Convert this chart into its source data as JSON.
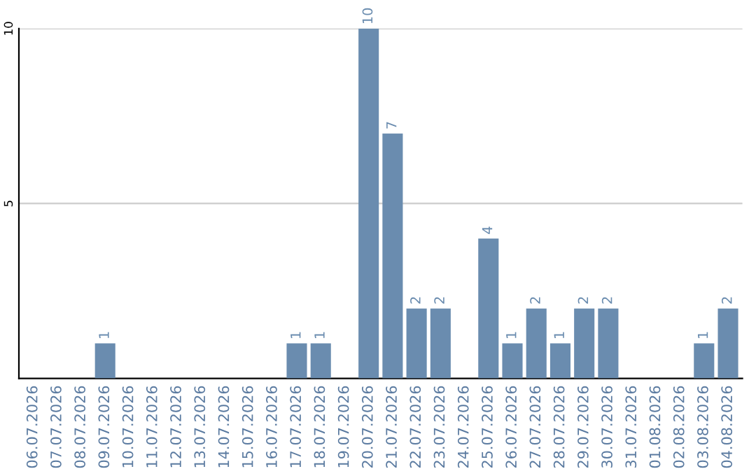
{
  "chart_data": {
    "type": "bar",
    "categories": [
      "06.07.2026",
      "07.07.2026",
      "08.07.2026",
      "09.07.2026",
      "10.07.2026",
      "11.07.2026",
      "12.07.2026",
      "13.07.2026",
      "14.07.2026",
      "15.07.2026",
      "16.07.2026",
      "17.07.2026",
      "18.07.2026",
      "19.07.2026",
      "20.07.2026",
      "21.07.2026",
      "22.07.2026",
      "23.07.2026",
      "24.07.2026",
      "25.07.2026",
      "26.07.2026",
      "27.07.2026",
      "28.07.2026",
      "29.07.2026",
      "30.07.2026",
      "31.07.2026",
      "01.08.2026",
      "02.08.2026",
      "03.08.2026",
      "04.08.2026"
    ],
    "values": [
      0,
      0,
      0,
      1,
      0,
      0,
      0,
      0,
      0,
      0,
      0,
      1,
      1,
      0,
      10,
      7,
      2,
      2,
      0,
      4,
      1,
      2,
      1,
      2,
      2,
      0,
      0,
      0,
      1,
      2
    ],
    "value_labels": [
      null,
      null,
      null,
      "1",
      null,
      null,
      null,
      null,
      null,
      null,
      null,
      "1",
      "1",
      null,
      "10",
      "7",
      "2",
      "2",
      null,
      "4",
      "1",
      "2",
      "1",
      "2",
      "2",
      null,
      null,
      null,
      "1",
      "2"
    ],
    "color": "#6a8caf",
    "ylim": [
      0,
      10
    ],
    "yticks": [
      5,
      10
    ],
    "grid": "y"
  }
}
